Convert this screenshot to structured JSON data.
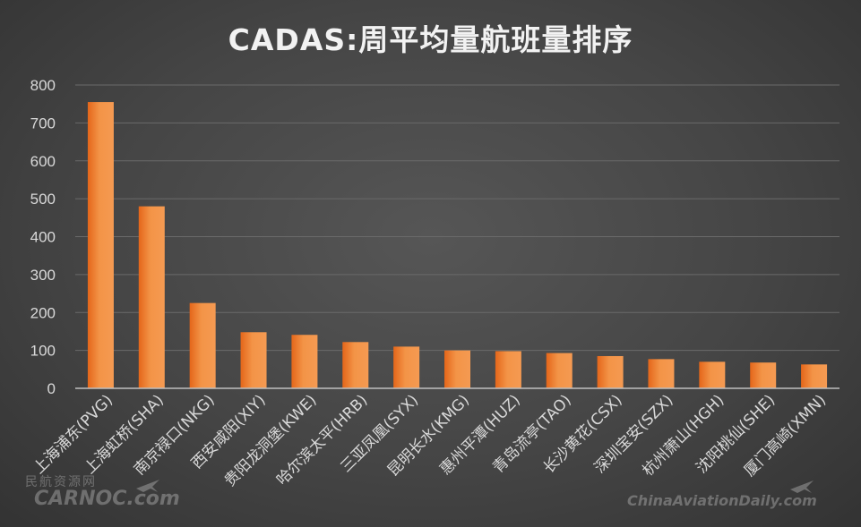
{
  "title": "CADAS:周平均量航班量排序",
  "watermarks": {
    "left_cn": "民航资源网",
    "left": "CARNOC.com",
    "right": "ChinaAviationDaily.com",
    "icon": "plane-icon"
  },
  "colors": {
    "bar_light": "#f59a52",
    "bar_dark": "#e4661a",
    "grid": "#6a6a6a",
    "axis": "#bfbfbf",
    "text": "#d9d9d9"
  },
  "chart_data": {
    "type": "bar",
    "title": "CADAS:周平均量航班量排序",
    "xlabel": "",
    "ylabel": "",
    "ylim": [
      0,
      800
    ],
    "yticks": [
      0,
      100,
      200,
      300,
      400,
      500,
      600,
      700,
      800
    ],
    "grid": true,
    "legend": "none",
    "categories": [
      "上海浦东(PVG)",
      "上海虹桥(SHA)",
      "南京禄口(NKG)",
      "西安咸阳(XIY)",
      "贵阳龙洞堡(KWE)",
      "哈尔滨太平(HRB)",
      "三亚凤凰(SYX)",
      "昆明长水(KMG)",
      "惠州平潭(HUZ)",
      "青岛流亭(TAO)",
      "长沙黄花(CSX)",
      "深圳宝安(SZX)",
      "杭州萧山(HGH)",
      "沈阳桃仙(SHE)",
      "厦门高崎(XMN)"
    ],
    "values": [
      755,
      480,
      225,
      148,
      141,
      122,
      110,
      100,
      98,
      93,
      85,
      77,
      70,
      68,
      63
    ]
  }
}
